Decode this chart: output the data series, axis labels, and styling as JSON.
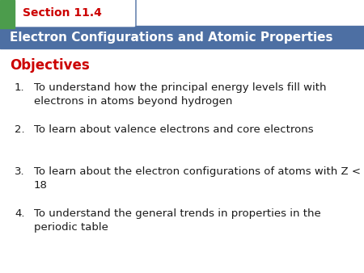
{
  "section_label": "Section 11.4",
  "header_text": "Electron Configurations and Atomic Properties",
  "objectives_label": "Objectives",
  "items": [
    "To understand how the principal energy levels fill with\nelectrons in atoms beyond hydrogen",
    "To learn about valence electrons and core electrons",
    "To learn about the electron configurations of atoms with Z <\n18",
    "To understand the general trends in properties in the\nperiodic table"
  ],
  "bg_color": "#ffffff",
  "header_bg_color": "#4d6fa3",
  "header_text_color": "#ffffff",
  "section_tab_bg": "#ffffff",
  "section_tab_text_color": "#cc0000",
  "section_tab_border_color": "#4d6fa3",
  "left_bar_color": "#4c9c4c",
  "objectives_color": "#cc0000",
  "body_text_color": "#1a1a1a",
  "body_fontsize": 9.5,
  "header_fontsize": 11,
  "section_fontsize": 10,
  "objectives_fontsize": 12,
  "fig_width": 4.5,
  "fig_height": 3.38,
  "dpi": 100
}
